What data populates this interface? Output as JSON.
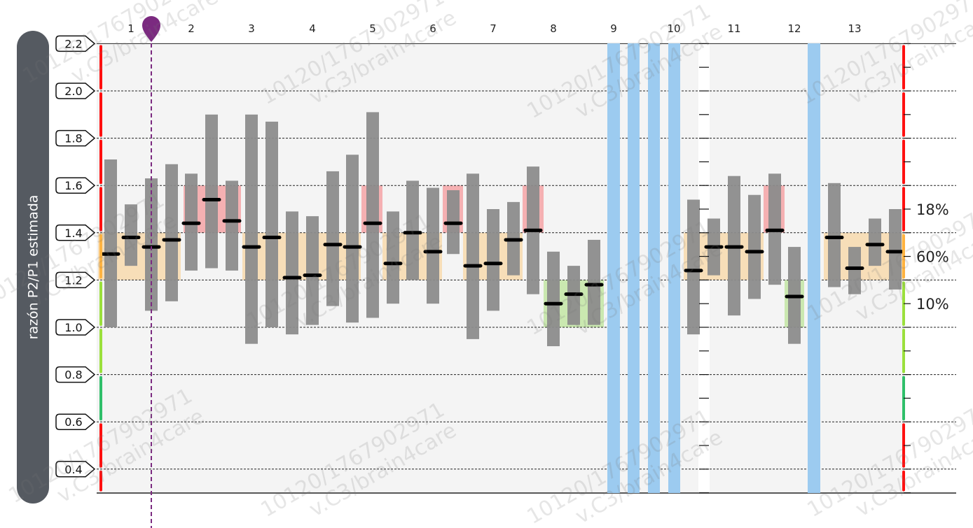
{
  "chart_data": {
    "type": "box",
    "ylabel": "razón P2/P1 estimada",
    "ylim": [
      0.3,
      2.2
    ],
    "yticks": [
      "0.4",
      "0.6",
      "0.8",
      "1.0",
      "1.2",
      "1.4",
      "1.6",
      "1.8",
      "2.0",
      "2.2"
    ],
    "groups": [
      {
        "label": "1",
        "bars": [
          {
            "low": 1.0,
            "high": 1.71,
            "median": 1.31
          },
          {
            "low": 1.26,
            "high": 1.52,
            "median": 1.38
          },
          {
            "low": 1.07,
            "high": 1.63,
            "median": 1.34
          },
          {
            "low": 1.11,
            "high": 1.69,
            "median": 1.37
          }
        ]
      },
      {
        "label": "2",
        "bars": [
          {
            "low": 1.24,
            "high": 1.65,
            "median": 1.44
          },
          {
            "low": 1.25,
            "high": 1.9,
            "median": 1.54
          },
          {
            "low": 1.24,
            "high": 1.62,
            "median": 1.45
          }
        ]
      },
      {
        "label": "3",
        "bars": [
          {
            "low": 0.93,
            "high": 1.9,
            "median": 1.34
          },
          {
            "low": 1.0,
            "high": 1.87,
            "median": 1.38
          }
        ]
      },
      {
        "label": "4",
        "bars": [
          {
            "low": 0.97,
            "high": 1.49,
            "median": 1.21
          },
          {
            "low": 1.01,
            "high": 1.47,
            "median": 1.22
          },
          {
            "low": 1.09,
            "high": 1.66,
            "median": 1.35
          }
        ]
      },
      {
        "label": "5",
        "bars": [
          {
            "low": 1.02,
            "high": 1.73,
            "median": 1.34
          },
          {
            "low": 1.04,
            "high": 1.91,
            "median": 1.44
          },
          {
            "low": 1.1,
            "high": 1.49,
            "median": 1.27
          }
        ]
      },
      {
        "label": "6",
        "bars": [
          {
            "low": 1.2,
            "high": 1.62,
            "median": 1.4
          },
          {
            "low": 1.1,
            "high": 1.59,
            "median": 1.32
          },
          {
            "low": 1.31,
            "high": 1.58,
            "median": 1.44
          }
        ]
      },
      {
        "label": "7",
        "bars": [
          {
            "low": 0.95,
            "high": 1.65,
            "median": 1.26
          },
          {
            "low": 1.07,
            "high": 1.5,
            "median": 1.27
          },
          {
            "low": 1.22,
            "high": 1.53,
            "median": 1.37
          }
        ]
      },
      {
        "label": "8",
        "bars": [
          {
            "low": 1.14,
            "high": 1.68,
            "median": 1.41
          },
          {
            "low": 0.92,
            "high": 1.32,
            "median": 1.1
          },
          {
            "low": 1.01,
            "high": 1.26,
            "median": 1.14
          },
          {
            "low": 1.01,
            "high": 1.37,
            "median": 1.18
          }
        ]
      },
      {
        "label": "9",
        "bars": []
      },
      {
        "label": "10",
        "bars": [
          {
            "low": 0.97,
            "high": 1.54,
            "median": 1.24
          }
        ]
      },
      {
        "label": "11",
        "bars": [
          {
            "low": 1.22,
            "high": 1.46,
            "median": 1.34
          },
          {
            "low": 1.05,
            "high": 1.64,
            "median": 1.34
          },
          {
            "low": 1.12,
            "high": 1.56,
            "median": 1.32
          },
          {
            "low": 1.18,
            "high": 1.65,
            "median": 1.41
          }
        ]
      },
      {
        "label": "12",
        "bars": [
          {
            "low": 0.93,
            "high": 1.34,
            "median": 1.13
          }
        ]
      },
      {
        "label": "13",
        "bars": [
          {
            "low": 1.17,
            "high": 1.61,
            "median": 1.38
          },
          {
            "low": 1.14,
            "high": 1.34,
            "median": 1.25
          },
          {
            "low": 1.26,
            "high": 1.46,
            "median": 1.35
          },
          {
            "low": 1.16,
            "high": 1.5,
            "median": 1.32
          }
        ]
      }
    ],
    "distribution": [
      {
        "label": "18%",
        "range": [
          1.4,
          1.6
        ]
      },
      {
        "label": "60%",
        "range": [
          1.2,
          1.4
        ]
      },
      {
        "label": "10%",
        "range": [
          1.0,
          1.2
        ]
      }
    ],
    "watermark": [
      "10120/1767902971",
      "v.C3/brain4care"
    ],
    "colors": {
      "bar": "#8c8c8c",
      "median": "#000000",
      "band_high": "#f5a3a6",
      "band_mid": "#f7d9ad",
      "band_low": "#c2e5a3",
      "gap": "#9ccbf0",
      "marker": "#7b2a80",
      "scale_red": "#ff1010",
      "scale_orange": "#ffb340",
      "scale_green": "#9be03c",
      "scale_teal": "#2fbf6a"
    }
  }
}
